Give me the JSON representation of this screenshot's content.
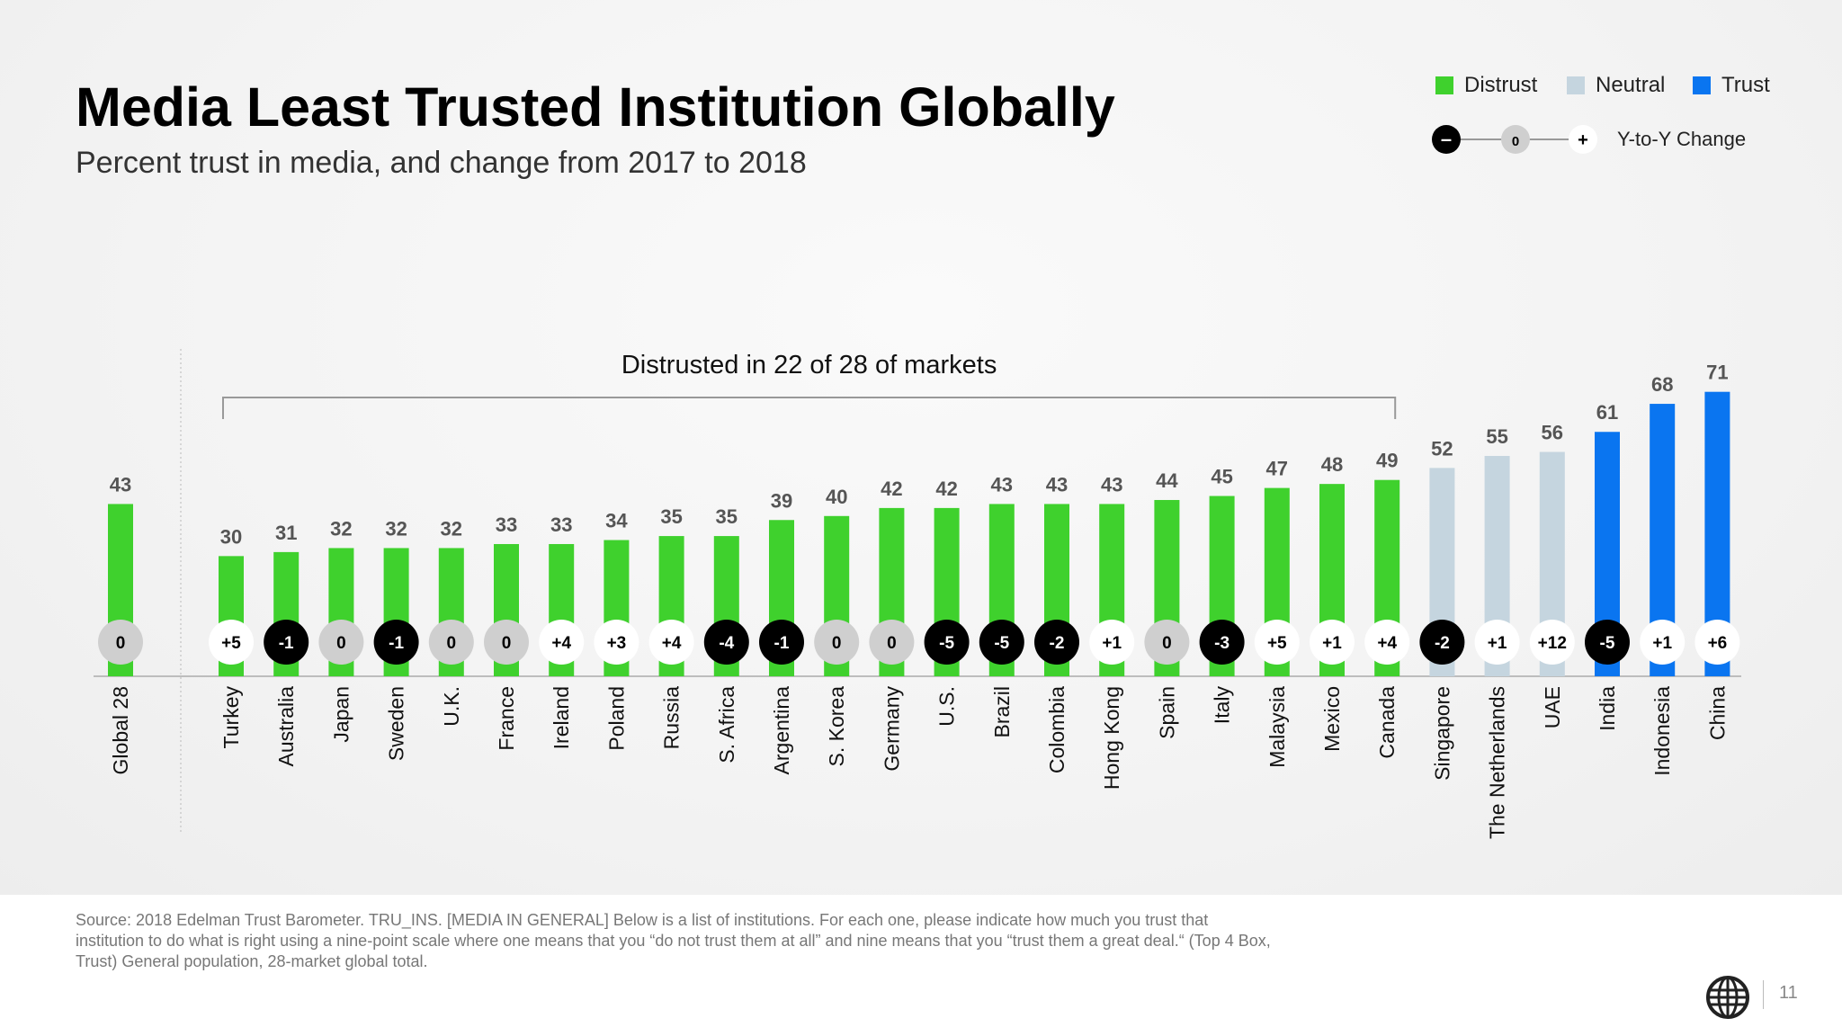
{
  "header": {
    "title": "Media Least Trusted Institution Globally",
    "subtitle": "Percent trust in media, and change from 2017 to 2018"
  },
  "legend": {
    "distrust_label": "Distrust",
    "neutral_label": "Neutral",
    "trust_label": "Trust",
    "change_label": "Y-to-Y Change",
    "change_minus": "–",
    "change_zero": "0",
    "change_plus": "+"
  },
  "colors": {
    "distrust": "#3fd12d",
    "neutral": "#c5d5df",
    "trust": "#0a75f0",
    "change_negative": "#000000",
    "change_zero": "#cfcfcf",
    "change_positive": "#ffffff"
  },
  "chart_data": {
    "type": "bar",
    "title": "Media Least Trusted Institution Globally",
    "subtitle": "Percent trust in media, and change from 2017 to 2018",
    "annotation": "Distrusted in 22 of 28 of markets",
    "ylim": [
      0,
      75
    ],
    "grid": false,
    "legend_position": "top-right",
    "categories": [
      "Global 28",
      "Turkey",
      "Australia",
      "Japan",
      "Sweden",
      "U.K.",
      "France",
      "Ireland",
      "Poland",
      "Russia",
      "S. Africa",
      "Argentina",
      "S. Korea",
      "Germany",
      "U.S.",
      "Brazil",
      "Colombia",
      "Hong Kong",
      "Spain",
      "Italy",
      "Malaysia",
      "Mexico",
      "Canada",
      "Singapore",
      "The Netherlands",
      "UAE",
      "India",
      "Indonesia",
      "China"
    ],
    "values": [
      43,
      30,
      31,
      32,
      32,
      32,
      33,
      33,
      34,
      35,
      35,
      39,
      40,
      42,
      42,
      43,
      43,
      43,
      44,
      45,
      47,
      48,
      49,
      52,
      55,
      56,
      61,
      68,
      71
    ],
    "status": [
      "distrust",
      "distrust",
      "distrust",
      "distrust",
      "distrust",
      "distrust",
      "distrust",
      "distrust",
      "distrust",
      "distrust",
      "distrust",
      "distrust",
      "distrust",
      "distrust",
      "distrust",
      "distrust",
      "distrust",
      "distrust",
      "distrust",
      "distrust",
      "distrust",
      "distrust",
      "distrust",
      "neutral",
      "neutral",
      "neutral",
      "trust",
      "trust",
      "trust"
    ],
    "change": [
      "0",
      "+5",
      "-1",
      "0",
      "-1",
      "0",
      "0",
      "+4",
      "+3",
      "+4",
      "-4",
      "-1",
      "0",
      "0",
      "-5",
      "-5",
      "-2",
      "+1",
      "0",
      "-3",
      "+5",
      "+1",
      "+4",
      "-2",
      "+1",
      "+12",
      "-5",
      "+1",
      "+6"
    ]
  },
  "footer": {
    "source": "Source: 2018 Edelman Trust Barometer. TRU_INS. [MEDIA IN GENERAL] Below is a list of institutions. For each one, please indicate how much you trust that institution to do what is right using a nine-point scale where one means that you “do not trust them at all” and nine means that you “trust them a great deal.“ (Top 4 Box, Trust) General population, 28-market global total.",
    "page_number": "11"
  }
}
